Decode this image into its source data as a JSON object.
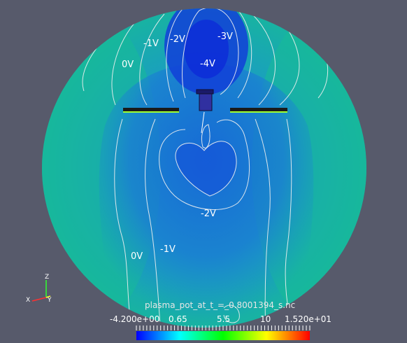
{
  "scene": {
    "contour_labels": {
      "c0v_top": "0V",
      "c1v_top": "-1V",
      "c2v_top": "-2V",
      "c3v_top": "-3V",
      "c4v_top": "-4V",
      "c2v_mid": "-2V",
      "c0v_bottom": "0V",
      "c1v_bottom": "-1V"
    }
  },
  "colorbar": {
    "title": "plasma_pot_at_t_=_0.8001394_s.nc",
    "ticks": [
      "-4.200e+00",
      "0.65",
      "5.5",
      "10",
      "1.520e+01"
    ],
    "colors": {
      "low": "#0000ff",
      "mid_low": "#00ffff",
      "mid": "#00ff00",
      "mid_high": "#ffff00",
      "high": "#ff0000"
    }
  },
  "axes_gizmo": {
    "x": "X",
    "y": "Y",
    "z": "Z",
    "x_color": "#ff3030",
    "y_color": "#ffff30",
    "z_color": "#30ff30"
  },
  "colors": {
    "background": "#575a6b",
    "domain_outer": "#18b89a",
    "domain_inner": "#1060d0",
    "contour": "#f0f0f0"
  }
}
